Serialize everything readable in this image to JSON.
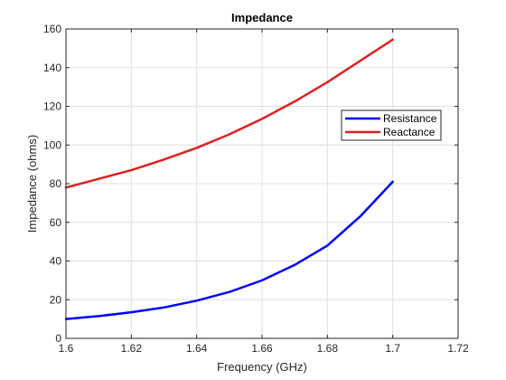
{
  "chart_data": {
    "type": "line",
    "title": "Impedance",
    "xlabel": "Frequency (GHz)",
    "ylabel": "Impedance (ohms)",
    "xlim": [
      1.6,
      1.72
    ],
    "ylim": [
      0,
      160
    ],
    "xticks": [
      "1.6",
      "1.62",
      "1.64",
      "1.66",
      "1.68",
      "1.7",
      "1.72"
    ],
    "yticks": [
      "0",
      "20",
      "40",
      "60",
      "80",
      "100",
      "120",
      "140",
      "160"
    ],
    "grid": true,
    "legend_position": "right",
    "x": [
      1.6,
      1.61,
      1.62,
      1.63,
      1.64,
      1.65,
      1.66,
      1.67,
      1.68,
      1.69,
      1.7
    ],
    "series": [
      {
        "name": "Resistance",
        "color": "#0000ff",
        "values": [
          10,
          11.5,
          13.5,
          16,
          19.5,
          24,
          30,
          38,
          48,
          63,
          81
        ]
      },
      {
        "name": "Reactance",
        "color": "#e02020",
        "values": [
          78,
          82.5,
          87,
          92.5,
          98.5,
          105.5,
          113.5,
          122.5,
          132.5,
          143.5,
          154.5
        ]
      }
    ]
  }
}
